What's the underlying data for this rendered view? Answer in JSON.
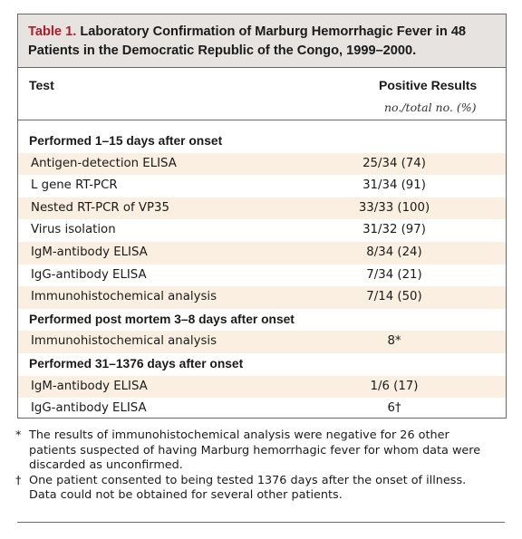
{
  "title": {
    "number": "Table 1.",
    "text": "Laboratory Confirmation of Marburg Hemorrhagic Fever in 48 Patients in the Democratic Republic of the Congo, 1999–2000."
  },
  "header": {
    "test": "Test",
    "positive": "Positive Results",
    "sub": "no./total no. (%)"
  },
  "rows": [
    {
      "kind": "section",
      "test": "Performed 1–15 days after onset",
      "result": ""
    },
    {
      "kind": "data",
      "test": "Antigen-detection ELISA",
      "result": "25/34 (74)"
    },
    {
      "kind": "data",
      "test": "L gene RT-PCR",
      "result": "31/34 (91)"
    },
    {
      "kind": "data",
      "test": "Nested RT-PCR of VP35",
      "result": "33/33 (100)"
    },
    {
      "kind": "data",
      "test": "Virus isolation",
      "result": "31/32 (97)"
    },
    {
      "kind": "data",
      "test": "IgM-antibody ELISA",
      "result": "8/34 (24)"
    },
    {
      "kind": "data",
      "test": "IgG-antibody ELISA",
      "result": "7/34 (21)"
    },
    {
      "kind": "data",
      "test": "Immunohistochemical analysis",
      "result": "7/14 (50)"
    },
    {
      "kind": "section",
      "test": "Performed post mortem 3–8 days after onset",
      "result": ""
    },
    {
      "kind": "data",
      "test": "Immunohistochemical analysis",
      "result": "8*"
    },
    {
      "kind": "section",
      "test": "Performed 31–1376 days after onset",
      "result": ""
    },
    {
      "kind": "data",
      "test": "IgM-antibody ELISA",
      "result": "1/6 (17)"
    },
    {
      "kind": "data",
      "test": "IgG-antibody ELISA",
      "result": "6†"
    }
  ],
  "footnotes": [
    {
      "mark": "*",
      "text": "The results of immunohistochemical analysis were negative for 26 other patients suspected of having Marburg hemorrhagic fever for whom data were discarded as unconfirmed."
    },
    {
      "mark": "†",
      "text": "One patient consented to being tested 1376 days after the onset of illness. Data could not be obtained for several other patients."
    }
  ],
  "colors": {
    "title_band": "#e7e3e0",
    "title_number": "#b01c2a",
    "row_shade": "#fbefe1",
    "rule": "#6a6a6a"
  }
}
